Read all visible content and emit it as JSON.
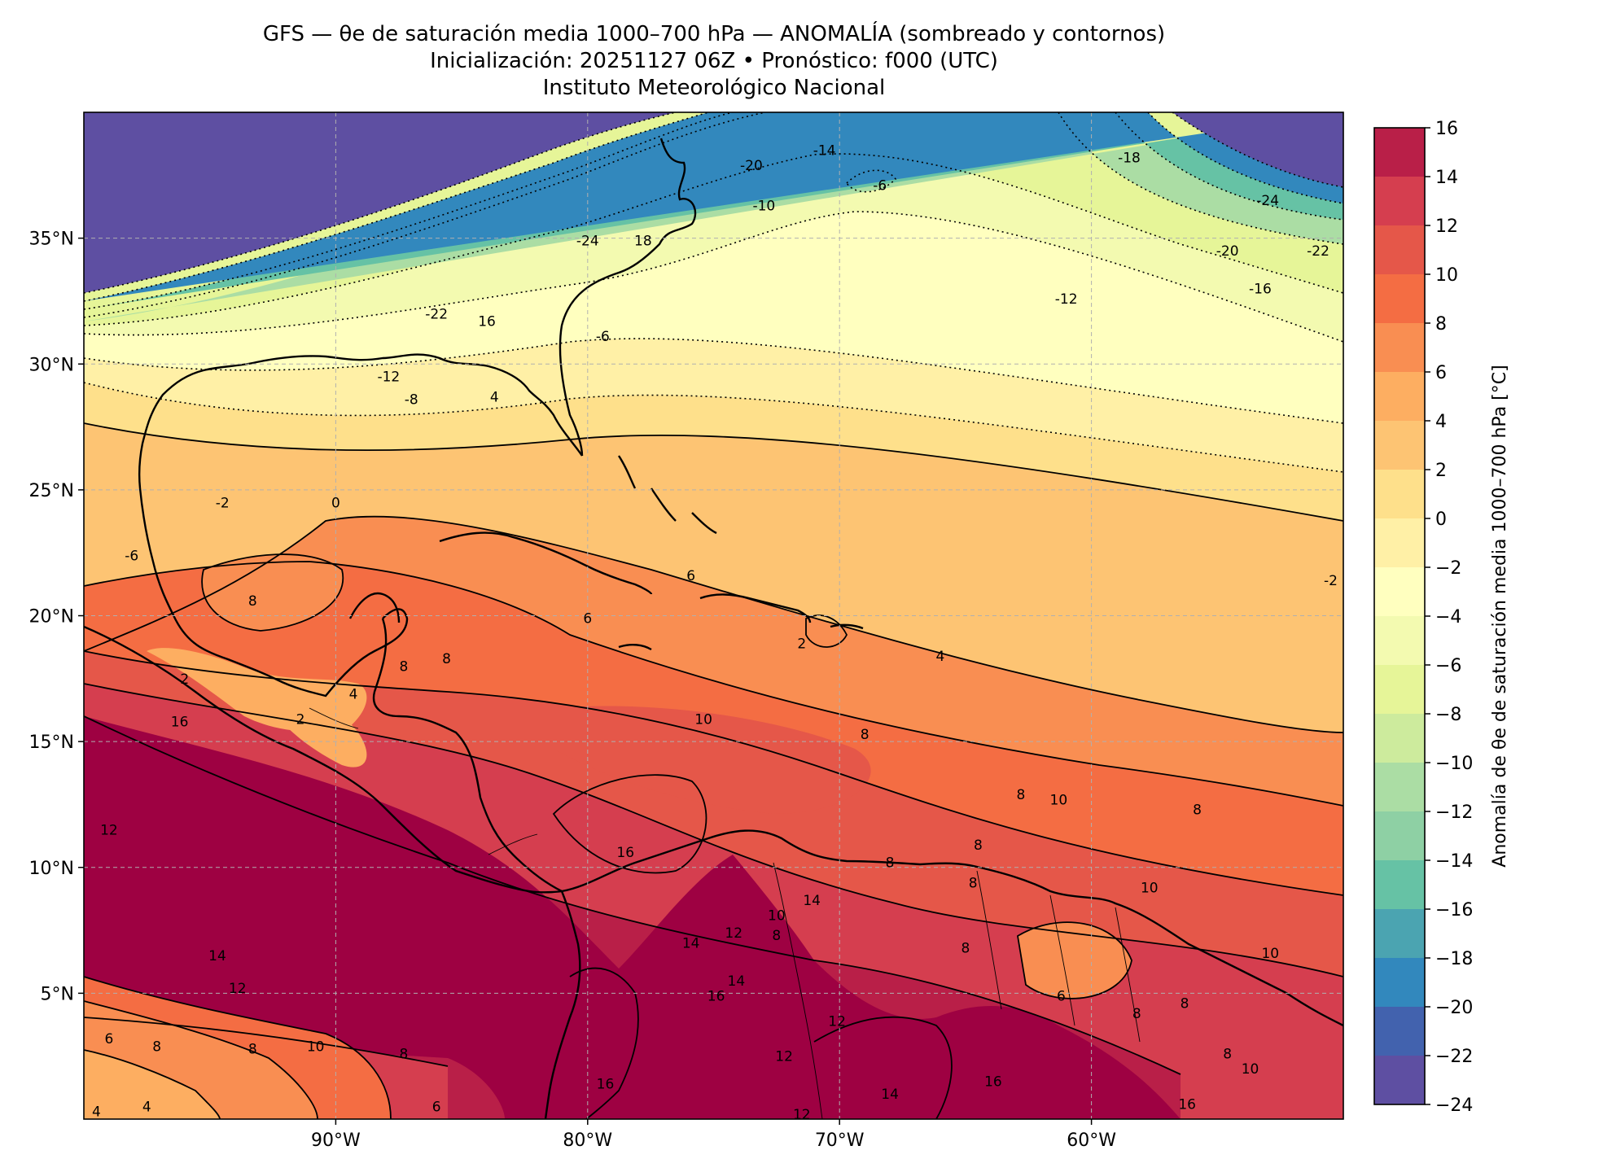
{
  "title": {
    "line1": "GFS — θe de saturación media 1000–700 hPa — ANOMALÍA (sombreado y contornos)",
    "line2": "Inicialización: 20251127 06Z   •   Pronóstico: f000 (UTC)",
    "line3": "Instituto Meteorológico Nacional"
  },
  "map": {
    "lon_range": [
      -100,
      -50
    ],
    "lat_range": [
      0,
      40
    ],
    "lon_ticks": [
      {
        "value": -90,
        "label": "90°W"
      },
      {
        "value": -80,
        "label": "80°W"
      },
      {
        "value": -70,
        "label": "70°W"
      },
      {
        "value": -60,
        "label": "60°W"
      }
    ],
    "lat_ticks": [
      {
        "value": 35,
        "label": "35°N"
      },
      {
        "value": 30,
        "label": "30°N"
      },
      {
        "value": 25,
        "label": "25°N"
      },
      {
        "value": 20,
        "label": "20°N"
      },
      {
        "value": 15,
        "label": "15°N"
      },
      {
        "value": 10,
        "label": "10°N"
      },
      {
        "value": 5,
        "label": "5°N"
      }
    ],
    "grid": true,
    "contour_labels": [
      {
        "text": "-20",
        "lon": -73.5,
        "lat": 37.9
      },
      {
        "text": "-14",
        "lon": -70.6,
        "lat": 38.5
      },
      {
        "text": "-6",
        "lon": -68.4,
        "lat": 37.1
      },
      {
        "text": "-10",
        "lon": -73.0,
        "lat": 36.3
      },
      {
        "text": "-24",
        "lon": -80.0,
        "lat": 34.9
      },
      {
        "text": "18",
        "lon": -77.8,
        "lat": 34.9
      },
      {
        "text": "-22",
        "lon": -86.0,
        "lat": 32.0
      },
      {
        "text": "16",
        "lon": -84.0,
        "lat": 31.7
      },
      {
        "text": "-6",
        "lon": -79.4,
        "lat": 31.1
      },
      {
        "text": "-12",
        "lon": -87.9,
        "lat": 29.5
      },
      {
        "text": "-8",
        "lon": -87.0,
        "lat": 28.6
      },
      {
        "text": "4",
        "lon": -83.7,
        "lat": 28.7
      },
      {
        "text": "-18",
        "lon": -58.5,
        "lat": 38.2
      },
      {
        "text": "-24",
        "lon": -53.0,
        "lat": 36.5
      },
      {
        "text": "-20",
        "lon": -54.6,
        "lat": 34.5
      },
      {
        "text": "-22",
        "lon": -51.0,
        "lat": 34.5
      },
      {
        "text": "-16",
        "lon": -53.3,
        "lat": 33.0
      },
      {
        "text": "-12",
        "lon": -61.0,
        "lat": 32.6
      },
      {
        "text": "-2",
        "lon": -94.5,
        "lat": 24.5
      },
      {
        "text": "0",
        "lon": -90.0,
        "lat": 24.5
      },
      {
        "text": "-6",
        "lon": -98.1,
        "lat": 22.4
      },
      {
        "text": "-2",
        "lon": -50.5,
        "lat": 21.4
      },
      {
        "text": "8",
        "lon": -93.3,
        "lat": 20.6
      },
      {
        "text": "6",
        "lon": -80.0,
        "lat": 19.9
      },
      {
        "text": "6",
        "lon": -75.9,
        "lat": 21.6
      },
      {
        "text": "2",
        "lon": -71.5,
        "lat": 18.9
      },
      {
        "text": "4",
        "lon": -66.0,
        "lat": 18.4
      },
      {
        "text": "8",
        "lon": -85.6,
        "lat": 18.3
      },
      {
        "text": "8",
        "lon": -87.3,
        "lat": 18.0
      },
      {
        "text": "2",
        "lon": -96.0,
        "lat": 17.5
      },
      {
        "text": "4",
        "lon": -89.3,
        "lat": 16.9
      },
      {
        "text": "2",
        "lon": -91.4,
        "lat": 15.9
      },
      {
        "text": "10",
        "lon": -75.4,
        "lat": 15.9
      },
      {
        "text": "8",
        "lon": -69.0,
        "lat": 15.3
      },
      {
        "text": "16",
        "lon": -96.2,
        "lat": 15.8
      },
      {
        "text": "12",
        "lon": -99.0,
        "lat": 11.5
      },
      {
        "text": "16",
        "lon": -78.5,
        "lat": 10.6
      },
      {
        "text": "8",
        "lon": -62.8,
        "lat": 12.9
      },
      {
        "text": "10",
        "lon": -61.3,
        "lat": 12.7
      },
      {
        "text": "8",
        "lon": -55.8,
        "lat": 12.3
      },
      {
        "text": "8",
        "lon": -64.5,
        "lat": 10.9
      },
      {
        "text": "8",
        "lon": -68.0,
        "lat": 10.2
      },
      {
        "text": "8",
        "lon": -64.7,
        "lat": 9.4
      },
      {
        "text": "10",
        "lon": -57.7,
        "lat": 9.2
      },
      {
        "text": "14",
        "lon": -94.7,
        "lat": 6.5
      },
      {
        "text": "12",
        "lon": -93.9,
        "lat": 5.2
      },
      {
        "text": "14",
        "lon": -75.9,
        "lat": 7.0
      },
      {
        "text": "12",
        "lon": -74.2,
        "lat": 7.4
      },
      {
        "text": "14",
        "lon": -71.1,
        "lat": 8.7
      },
      {
        "text": "8",
        "lon": -72.5,
        "lat": 7.3
      },
      {
        "text": "10",
        "lon": -72.5,
        "lat": 8.1
      },
      {
        "text": "16",
        "lon": -74.9,
        "lat": 4.9
      },
      {
        "text": "14",
        "lon": -74.1,
        "lat": 5.5
      },
      {
        "text": "12",
        "lon": -70.1,
        "lat": 3.9
      },
      {
        "text": "8",
        "lon": -65.0,
        "lat": 6.8
      },
      {
        "text": "6",
        "lon": -61.2,
        "lat": 4.9
      },
      {
        "text": "8",
        "lon": -58.2,
        "lat": 4.2
      },
      {
        "text": "8",
        "lon": -56.3,
        "lat": 4.6
      },
      {
        "text": "10",
        "lon": -52.9,
        "lat": 6.6
      },
      {
        "text": "10",
        "lon": -90.8,
        "lat": 2.9
      },
      {
        "text": "8",
        "lon": -93.3,
        "lat": 2.8
      },
      {
        "text": "8",
        "lon": -87.3,
        "lat": 2.6
      },
      {
        "text": "6",
        "lon": -99.0,
        "lat": 3.2
      },
      {
        "text": "8",
        "lon": -97.1,
        "lat": 2.9
      },
      {
        "text": "12",
        "lon": -72.2,
        "lat": 2.5
      },
      {
        "text": "14",
        "lon": -68.0,
        "lat": 1.0
      },
      {
        "text": "16",
        "lon": -63.9,
        "lat": 1.5
      },
      {
        "text": "16",
        "lon": -79.3,
        "lat": 1.4
      },
      {
        "text": "8",
        "lon": -54.6,
        "lat": 2.6
      },
      {
        "text": "10",
        "lon": -53.7,
        "lat": 2.0
      },
      {
        "text": "16",
        "lon": -56.2,
        "lat": 0.6
      },
      {
        "text": "6",
        "lon": -86.0,
        "lat": 0.5
      },
      {
        "text": "4",
        "lon": -99.5,
        "lat": 0.3
      },
      {
        "text": "4",
        "lon": -97.5,
        "lat": 0.5
      },
      {
        "text": "12",
        "lon": -71.5,
        "lat": 0.2
      }
    ]
  },
  "colorbar": {
    "label": "Anomalía de θe de saturación media 1000–700 hPa [°C]",
    "levels": [
      -24,
      -22,
      -20,
      -18,
      -16,
      -14,
      -12,
      -10,
      -8,
      -6,
      -4,
      -2,
      0,
      2,
      4,
      6,
      8,
      10,
      12,
      14,
      16
    ],
    "tick_labels": [
      "−24",
      "−22",
      "−20",
      "−18",
      "−16",
      "−14",
      "−12",
      "−10",
      "−8",
      "−6",
      "−4",
      "−2",
      "0",
      "2",
      "4",
      "6",
      "8",
      "10",
      "12",
      "14",
      "16"
    ],
    "colors": [
      "#5e4fa2",
      "#4262ae",
      "#3288bd",
      "#4ba4b1",
      "#66c2a5",
      "#8ed0a4",
      "#abdda4",
      "#cdeb9d",
      "#e6f598",
      "#f3fab0",
      "#ffffbf",
      "#fff0a6",
      "#fee08b",
      "#fdc473",
      "#fdae61",
      "#f98e52",
      "#f46d43",
      "#e55749",
      "#d53e4f",
      "#b91f48",
      "#9e0142"
    ]
  }
}
